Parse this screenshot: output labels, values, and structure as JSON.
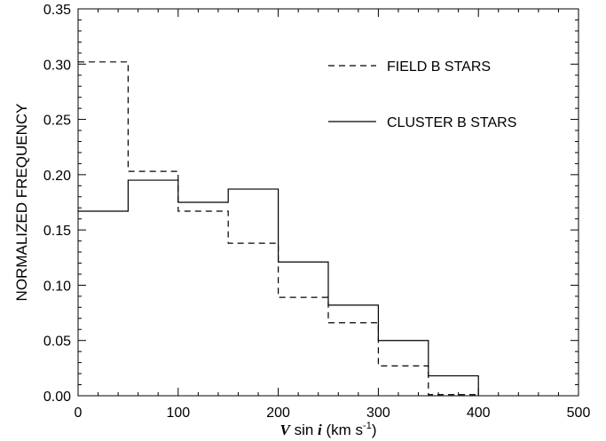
{
  "chart_data": {
    "type": "histogram-step",
    "title": "",
    "xlabel": {
      "prefix": "V",
      "middle": " sin ",
      "italic_i": "i",
      "units_open": " (km s",
      "units_sup": "-1",
      "units_close": ")"
    },
    "ylabel": "NORMALIZED FREQUENCY",
    "xlim": [
      0,
      500
    ],
    "ylim": [
      0.0,
      0.35
    ],
    "xticks": [
      0,
      100,
      200,
      300,
      400,
      500
    ],
    "xtick_labels": [
      "0",
      "100",
      "200",
      "300",
      "400",
      "500"
    ],
    "yticks": [
      0.0,
      0.05,
      0.1,
      0.15,
      0.2,
      0.25,
      0.3,
      0.35
    ],
    "ytick_labels": [
      "0.00",
      "0.05",
      "0.10",
      "0.15",
      "0.20",
      "0.25",
      "0.30",
      "0.35"
    ],
    "bin_edges": [
      0,
      50,
      100,
      150,
      200,
      250,
      300,
      350,
      400
    ],
    "series": [
      {
        "name": "FIELD B STARS",
        "style": "dashed",
        "color": "#000000",
        "values": [
          0.302,
          0.203,
          0.167,
          0.138,
          0.089,
          0.066,
          0.027,
          0.001
        ]
      },
      {
        "name": "CLUSTER B STARS",
        "style": "solid",
        "color": "#000000",
        "values": [
          0.167,
          0.195,
          0.175,
          0.187,
          0.121,
          0.082,
          0.05,
          0.018
        ]
      }
    ],
    "legend_position": "top-right",
    "grid": false
  }
}
